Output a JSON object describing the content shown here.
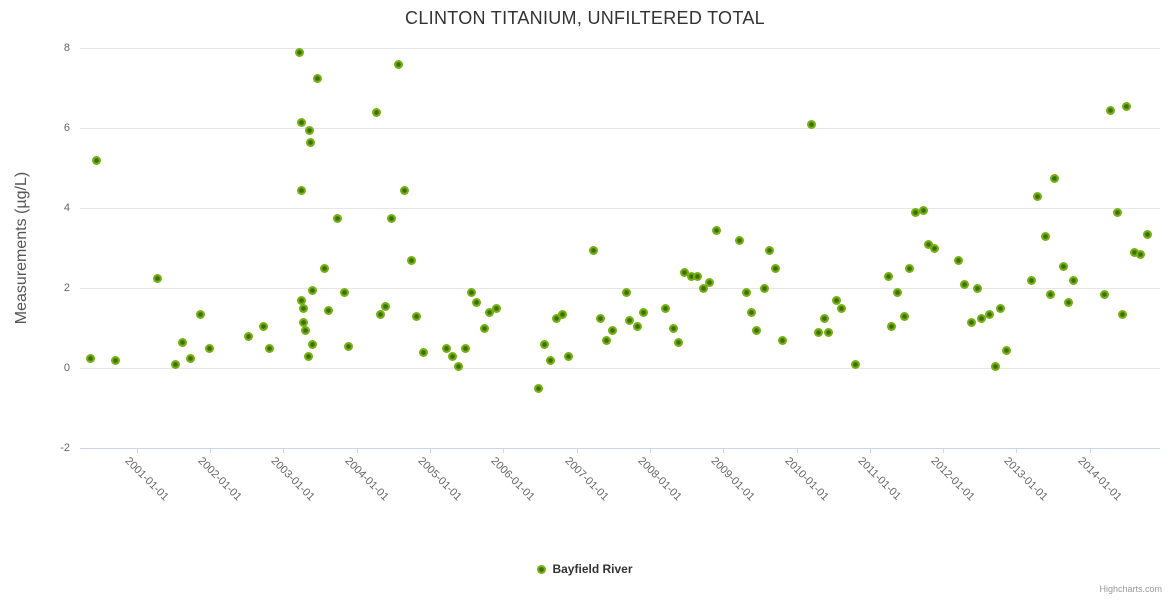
{
  "title": "CLINTON TITANIUM, UNFILTERED TOTAL",
  "y_axis": {
    "title": "Measurements (µg/L)",
    "ticks": [
      {
        "label": "-2",
        "value": -2
      },
      {
        "label": "0",
        "value": 0
      },
      {
        "label": "2",
        "value": 2
      },
      {
        "label": "4",
        "value": 4
      },
      {
        "label": "6",
        "value": 6
      },
      {
        "label": "8",
        "value": 8
      }
    ],
    "min": -2,
    "max": 8
  },
  "x_axis": {
    "tick_labels": [
      "2001-01-01",
      "2002-01-01",
      "2003-01-01",
      "2004-01-01",
      "2005-01-01",
      "2006-01-01",
      "2007-01-01",
      "2008-01-01",
      "2009-01-01",
      "2010-01-01",
      "2011-01-01",
      "2012-01-01",
      "2013-01-01",
      "2014-01-01"
    ]
  },
  "legend": {
    "series_label": "Bayfield River"
  },
  "credits": {
    "label": "Highcharts.com"
  },
  "colors": {
    "marker": "#74b010",
    "marker_center": "#3e6e08",
    "grid": "#e6e6e6",
    "axis_line": "#ccd6eb",
    "title_text": "#333333",
    "axis_label_text": "#666666",
    "legend_text": "#333333",
    "credits_text": "#999999"
  },
  "chart_data": {
    "type": "scatter",
    "title": "CLINTON TITANIUM, UNFILTERED TOTAL",
    "xlabel": "",
    "ylabel": "Measurements (µg/L)",
    "ylim": [
      -2,
      8
    ],
    "x_range": [
      "2000-03-24",
      "2014-12-17"
    ],
    "grid": "horizontal-only",
    "legend_position": "bottom-center",
    "series": [
      {
        "name": "Bayfield River",
        "points": [
          [
            "2000-05-15",
            0.25
          ],
          [
            "2000-06-12",
            5.2
          ],
          [
            "2000-09-18",
            0.2
          ],
          [
            "2001-04-15",
            2.25
          ],
          [
            "2001-07-12",
            0.1
          ],
          [
            "2001-08-14",
            0.65
          ],
          [
            "2001-09-25",
            0.25
          ],
          [
            "2001-11-15",
            1.35
          ],
          [
            "2001-12-28",
            0.5
          ],
          [
            "2002-07-12",
            0.8
          ],
          [
            "2002-09-25",
            1.05
          ],
          [
            "2002-10-25",
            0.5
          ],
          [
            "2003-03-20",
            7.9
          ],
          [
            "2003-03-28",
            6.15
          ],
          [
            "2003-04-02",
            4.45
          ],
          [
            "2003-04-02",
            1.7
          ],
          [
            "2003-04-08",
            1.5
          ],
          [
            "2003-04-10",
            1.15
          ],
          [
            "2003-04-22",
            0.95
          ],
          [
            "2003-05-03",
            0.3
          ],
          [
            "2003-05-10",
            5.95
          ],
          [
            "2003-05-15",
            5.65
          ],
          [
            "2003-05-22",
            1.95
          ],
          [
            "2003-05-26",
            0.6
          ],
          [
            "2003-06-17",
            7.25
          ],
          [
            "2003-07-23",
            2.5
          ],
          [
            "2003-08-14",
            1.45
          ],
          [
            "2003-09-27",
            3.75
          ],
          [
            "2003-11-03",
            1.9
          ],
          [
            "2003-11-21",
            0.55
          ],
          [
            "2004-04-08",
            6.4
          ],
          [
            "2004-04-26",
            1.35
          ],
          [
            "2004-05-25",
            1.55
          ],
          [
            "2004-06-20",
            3.75
          ],
          [
            "2004-07-26",
            7.6
          ],
          [
            "2004-08-25",
            4.45
          ],
          [
            "2004-10-01",
            2.7
          ],
          [
            "2004-10-23",
            1.3
          ],
          [
            "2004-11-28",
            0.4
          ],
          [
            "2005-03-21",
            0.5
          ],
          [
            "2005-04-24",
            0.3
          ],
          [
            "2005-05-19",
            0.05
          ],
          [
            "2005-06-25",
            0.5
          ],
          [
            "2005-07-23",
            1.9
          ],
          [
            "2005-08-21",
            1.65
          ],
          [
            "2005-09-27",
            1.0
          ],
          [
            "2005-10-26",
            1.4
          ],
          [
            "2005-11-29",
            1.5
          ],
          [
            "2006-06-25",
            -0.5
          ],
          [
            "2006-07-23",
            0.6
          ],
          [
            "2006-08-21",
            0.2
          ],
          [
            "2006-09-24",
            1.25
          ],
          [
            "2006-10-23",
            1.35
          ],
          [
            "2006-11-21",
            0.3
          ],
          [
            "2007-03-25",
            2.95
          ],
          [
            "2007-04-27",
            1.25
          ],
          [
            "2007-05-26",
            0.7
          ],
          [
            "2007-06-28",
            0.95
          ],
          [
            "2007-09-05",
            1.9
          ],
          [
            "2007-09-23",
            1.2
          ],
          [
            "2007-10-30",
            1.05
          ],
          [
            "2007-12-02",
            1.4
          ],
          [
            "2008-03-20",
            1.5
          ],
          [
            "2008-04-26",
            1.0
          ],
          [
            "2008-05-22",
            0.65
          ],
          [
            "2008-06-20",
            2.4
          ],
          [
            "2008-07-26",
            2.3
          ],
          [
            "2008-08-25",
            2.3
          ],
          [
            "2008-09-24",
            2.0
          ],
          [
            "2008-10-26",
            2.15
          ],
          [
            "2008-11-29",
            3.45
          ],
          [
            "2009-03-21",
            3.2
          ],
          [
            "2009-04-24",
            1.9
          ],
          [
            "2009-05-22",
            1.4
          ],
          [
            "2009-06-17",
            0.95
          ],
          [
            "2009-07-26",
            2.0
          ],
          [
            "2009-08-21",
            2.95
          ],
          [
            "2009-09-20",
            2.5
          ],
          [
            "2009-10-23",
            0.7
          ],
          [
            "2010-03-17",
            6.1
          ],
          [
            "2010-04-19",
            0.9
          ],
          [
            "2010-05-19",
            1.25
          ],
          [
            "2010-06-10",
            0.9
          ],
          [
            "2010-07-20",
            1.7
          ],
          [
            "2010-08-14",
            1.5
          ],
          [
            "2010-10-23",
            0.1
          ],
          [
            "2011-04-05",
            2.3
          ],
          [
            "2011-04-20",
            1.05
          ],
          [
            "2011-05-15",
            1.9
          ],
          [
            "2011-06-24",
            1.3
          ],
          [
            "2011-07-15",
            2.5
          ],
          [
            "2011-08-14",
            3.9
          ],
          [
            "2011-09-24",
            3.95
          ],
          [
            "2011-10-19",
            3.1
          ],
          [
            "2011-11-17",
            3.0
          ],
          [
            "2012-03-17",
            2.7
          ],
          [
            "2012-04-16",
            2.1
          ],
          [
            "2012-05-21",
            1.15
          ],
          [
            "2012-06-20",
            2.0
          ],
          [
            "2012-07-12",
            1.25
          ],
          [
            "2012-08-18",
            1.35
          ],
          [
            "2012-09-20",
            0.05
          ],
          [
            "2012-10-12",
            1.5
          ],
          [
            "2012-11-14",
            0.45
          ],
          [
            "2013-03-17",
            2.2
          ],
          [
            "2013-04-16",
            4.3
          ],
          [
            "2013-05-22",
            3.3
          ],
          [
            "2013-06-20",
            1.85
          ],
          [
            "2013-07-08",
            4.75
          ],
          [
            "2013-08-21",
            2.55
          ],
          [
            "2013-09-16",
            1.65
          ],
          [
            "2013-10-12",
            2.2
          ],
          [
            "2014-03-14",
            1.85
          ],
          [
            "2014-04-12",
            6.45
          ],
          [
            "2014-05-19",
            3.9
          ],
          [
            "2014-06-13",
            1.35
          ],
          [
            "2014-07-01",
            6.55
          ],
          [
            "2014-08-11",
            2.9
          ],
          [
            "2014-09-12",
            2.85
          ],
          [
            "2014-10-15",
            3.35
          ]
        ]
      }
    ]
  }
}
